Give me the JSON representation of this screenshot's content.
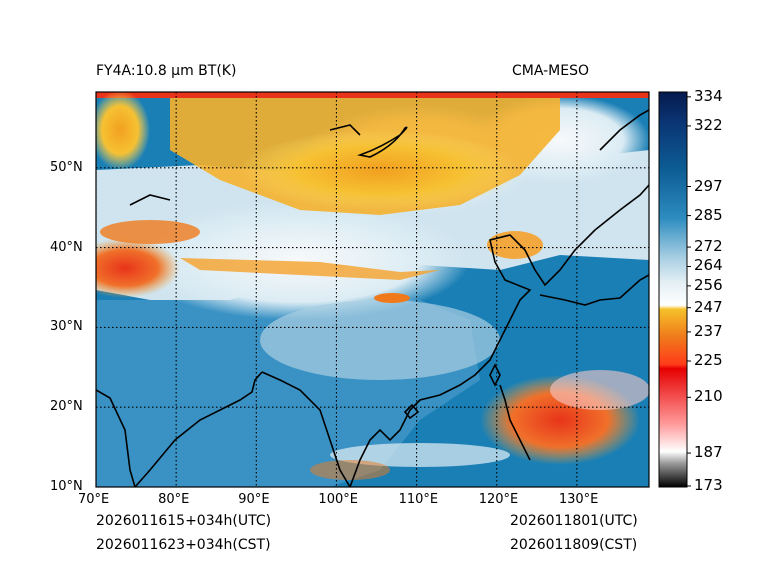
{
  "title_left": "FY4A:10.8 µm BT(K)",
  "title_right": "CMA-MESO",
  "footer": {
    "init_utc": "2026011615+034h(UTC)",
    "init_cst": "2026011623+034h(CST)",
    "valid_utc": "2026011801(UTC)",
    "valid_cst": "2026011809(CST)"
  },
  "map": {
    "lon_range": [
      70,
      139
    ],
    "lat_range": [
      10,
      59.5
    ],
    "lon_ticks": [
      {
        "value": 70,
        "label": "70°E"
      },
      {
        "value": 80,
        "label": "80°E"
      },
      {
        "value": 90,
        "label": "90°E"
      },
      {
        "value": 100,
        "label": "100°E"
      },
      {
        "value": 110,
        "label": "110°E"
      },
      {
        "value": 120,
        "label": "120°E"
      },
      {
        "value": 130,
        "label": "130°E"
      }
    ],
    "lat_ticks": [
      {
        "value": 10,
        "label": "10°N"
      },
      {
        "value": 20,
        "label": "20°N"
      },
      {
        "value": 30,
        "label": "30°N"
      },
      {
        "value": 40,
        "label": "40°N"
      },
      {
        "value": 50,
        "label": "50°N"
      }
    ]
  },
  "colorbar": {
    "range": [
      173,
      336
    ],
    "ticks": [
      173,
      187,
      210,
      225,
      237,
      247,
      256,
      264,
      272,
      285,
      297,
      322,
      334
    ]
  },
  "colors": {
    "ocean": "#1a7fb5",
    "land_warm": "#4d9cc8",
    "cloud_low": "#c9e2ef",
    "cloud_mid": "#f2f5f7",
    "cloud_high": "#f5b731",
    "cloud_top": "#e8431f"
  }
}
